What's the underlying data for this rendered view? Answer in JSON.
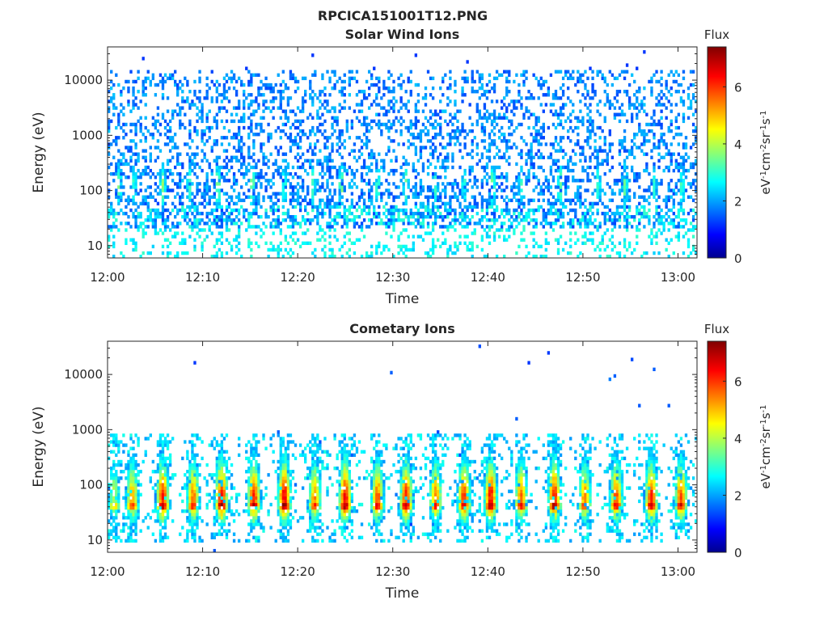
{
  "figure": {
    "title": "RPCICA151001T12.PNG"
  },
  "chart_data": [
    {
      "type": "heatmap",
      "title": "Solar Wind Ions",
      "xlabel": "Time",
      "ylabel": "Energy (eV)",
      "x_ticks": [
        "12:00",
        "12:10",
        "12:20",
        "12:30",
        "12:40",
        "12:50",
        "13:00"
      ],
      "x_range": [
        "12:00",
        "13:02"
      ],
      "y_scale": "log",
      "y_ticks": [
        10,
        100,
        1000,
        10000
      ],
      "y_tick_labels": [
        "10",
        "100",
        "1000",
        "10000"
      ],
      "y_range": [
        6,
        40000
      ],
      "colorbar": {
        "title": "Flux",
        "label": "eV-1cm-2sr-1s-1",
        "range": [
          0,
          7.4
        ],
        "ticks": [
          0,
          2,
          4,
          6
        ],
        "tick_labels": [
          "0",
          "2",
          "4",
          "6"
        ],
        "colormap": "jet"
      },
      "sweep_minutes": [
        1.2,
        2.8,
        5.8,
        8.6,
        11.6,
        15.2,
        18.6,
        21.6,
        24.6,
        28.4,
        31.4,
        34.5,
        37.5,
        40.5,
        43.5,
        47.6,
        51.6,
        54.4,
        57.5,
        60.4
      ],
      "sweep_peak_flux": [
        3.6,
        3.2,
        3.8,
        3.4,
        3.8,
        3.8,
        3.2,
        3.4,
        3.8,
        3.4,
        3.6,
        3.2,
        3.2,
        3.6,
        3.2,
        3.6,
        3.2,
        3.6,
        3.2,
        3.4
      ],
      "background_flux_range": [
        1.4,
        2.4
      ],
      "background_energy_range_ev": [
        20,
        15000
      ]
    },
    {
      "type": "heatmap",
      "title": "Cometary Ions",
      "xlabel": "Time",
      "ylabel": "Energy (eV)",
      "x_ticks": [
        "12:00",
        "12:10",
        "12:20",
        "12:30",
        "12:40",
        "12:50",
        "13:00"
      ],
      "x_range": [
        "12:00",
        "13:02"
      ],
      "y_scale": "log",
      "y_ticks": [
        10,
        100,
        1000,
        10000
      ],
      "y_tick_labels": [
        "10",
        "100",
        "1000",
        "10000"
      ],
      "y_range": [
        6,
        40000
      ],
      "colorbar": {
        "title": "Flux",
        "label": "eV-1cm-2sr-1s-1",
        "range": [
          0,
          7.4
        ],
        "ticks": [
          0,
          2,
          4,
          6
        ],
        "tick_labels": [
          "0",
          "2",
          "4",
          "6"
        ],
        "colormap": "jet"
      },
      "sweep_minutes": [
        0.7,
        2.6,
        5.8,
        9.0,
        12.0,
        15.4,
        18.6,
        21.8,
        25.0,
        28.4,
        31.4,
        34.5,
        37.5,
        40.3,
        43.5,
        47.0,
        50.2,
        53.5,
        57.2,
        60.3
      ],
      "sweep_peak_flux": [
        4.2,
        5.2,
        6.2,
        5.6,
        6.4,
        6.2,
        6.6,
        5.4,
        6.4,
        5.8,
        6.2,
        5.6,
        6.0,
        6.4,
        5.6,
        6.4,
        5.4,
        5.8,
        6.2,
        5.8
      ],
      "sweep_peak_energy_ev": 60,
      "background_flux_range": [
        2.0,
        3.0
      ],
      "background_energy_range_ev": [
        10,
        1500
      ]
    }
  ]
}
